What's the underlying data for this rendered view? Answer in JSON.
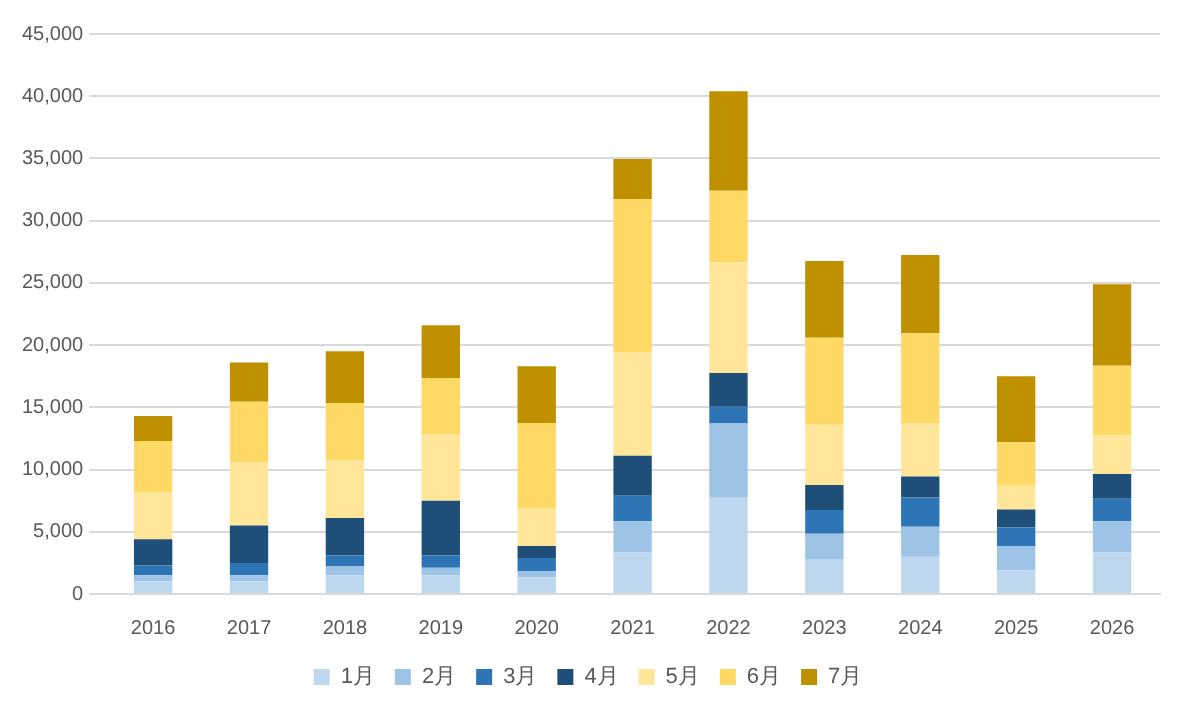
{
  "chart_data": {
    "type": "bar",
    "stacked": true,
    "categories": [
      "2016",
      "2017",
      "2018",
      "2019",
      "2020",
      "2021",
      "2022",
      "2023",
      "2024",
      "2025",
      "2026"
    ],
    "series": [
      {
        "name": "1月",
        "color": "#bdd7ee",
        "values": [
          1000,
          1000,
          1500,
          1500,
          1350,
          3350,
          7800,
          2750,
          3000,
          1900,
          3350
        ]
      },
      {
        "name": "2月",
        "color": "#9dc3e6",
        "values": [
          500,
          500,
          750,
          600,
          500,
          2500,
          5900,
          2100,
          2400,
          1950,
          2500
        ]
      },
      {
        "name": "3月",
        "color": "#2e75b6",
        "values": [
          800,
          1000,
          850,
          1000,
          1050,
          2050,
          1350,
          1900,
          2350,
          1500,
          1800
        ]
      },
      {
        "name": "4月",
        "color": "#1f4e79",
        "values": [
          2100,
          3000,
          3000,
          4400,
          950,
          3200,
          2700,
          2000,
          1700,
          1450,
          2000
        ]
      },
      {
        "name": "5月",
        "color": "#ffe699",
        "values": [
          3750,
          5100,
          4650,
          5350,
          3000,
          8300,
          8900,
          4850,
          4300,
          1900,
          3100
        ]
      },
      {
        "name": "6月",
        "color": "#ffd966",
        "values": [
          4150,
          4850,
          4600,
          4500,
          6900,
          12350,
          5750,
          7000,
          7200,
          3500,
          5600
        ]
      },
      {
        "name": "7月",
        "color": "#bf9000",
        "values": [
          2000,
          3150,
          4150,
          4250,
          4550,
          3200,
          8000,
          6150,
          6300,
          5300,
          6550
        ]
      }
    ],
    "ylim": [
      0,
      45000
    ],
    "yticks": [
      0,
      {
        "value": 5000,
        "label": "5,000"
      },
      {
        "value": 10000,
        "label": "10,000"
      },
      {
        "value": 15000,
        "label": "15,000"
      },
      {
        "value": 20000,
        "label": "20,000"
      },
      {
        "value": 25000,
        "label": "25,000"
      },
      {
        "value": 30000,
        "label": "30,000"
      },
      {
        "value": 35000,
        "label": "35,000"
      },
      {
        "value": 40000,
        "label": "40,000"
      },
      {
        "value": 45000,
        "label": "45,000"
      }
    ],
    "grid": "y",
    "legend": "bottom"
  }
}
